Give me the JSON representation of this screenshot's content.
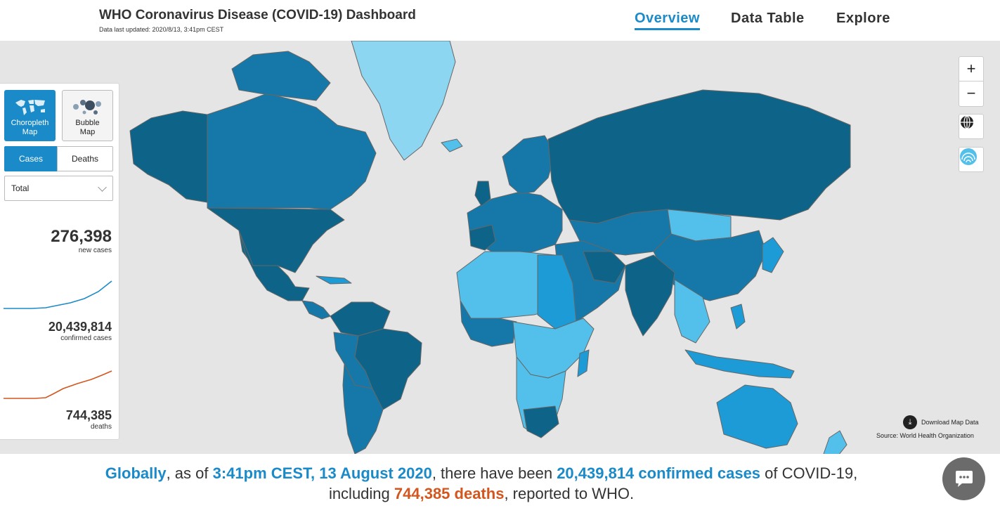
{
  "header": {
    "title": "WHO Coronavirus Disease (COVID-19) Dashboard",
    "updated": "Data last updated: 2020/8/13, 3:41pm CEST",
    "nav": [
      {
        "label": "Overview",
        "active": true
      },
      {
        "label": "Data Table",
        "active": false
      },
      {
        "label": "Explore",
        "active": false
      }
    ]
  },
  "panel": {
    "map_types": [
      {
        "label_line1": "Choropleth",
        "label_line2": "Map",
        "icon": "world-map-icon",
        "active": true
      },
      {
        "label_line1": "Bubble",
        "label_line2": "Map",
        "icon": "bubble-icon",
        "active": false
      }
    ],
    "metric_tabs": [
      {
        "label": "Cases",
        "active": true
      },
      {
        "label": "Deaths",
        "active": false
      }
    ],
    "period_select": {
      "value": "Total"
    },
    "stats": {
      "new_cases": {
        "value": "276,398",
        "label": "new cases"
      },
      "confirmed": {
        "value": "20,439,814",
        "label": "confirmed cases"
      },
      "deaths": {
        "value": "744,385",
        "label": "deaths"
      }
    }
  },
  "map_controls": {
    "zoom_in": "+",
    "zoom_out": "−",
    "globe_icon": "globe-icon",
    "layers_icon": "layers-icon"
  },
  "map_footer": {
    "download": "Download Map Data",
    "source": "Source: World Health Organization"
  },
  "summary": {
    "globally": "Globally",
    "t1": ", as of ",
    "time": "3:41pm CEST, 13 August 2020",
    "t2": ", there have been ",
    "confirmed": "20,439,814 confirmed cases",
    "t3": " of COVID-19, including ",
    "deaths": "744,385 deaths",
    "t4": ", reported to WHO."
  },
  "colors": {
    "accent": "#1a8ac8",
    "deaths": "#d2561e",
    "map_water": "#e5e5e5",
    "shade_darkest": "#0e6488",
    "shade_dark": "#1578a8",
    "shade_mid": "#1d9bd6",
    "shade_light": "#52c0ea",
    "shade_lightest": "#8dd6f2"
  },
  "chat_icon": "chat-bubble-icon"
}
